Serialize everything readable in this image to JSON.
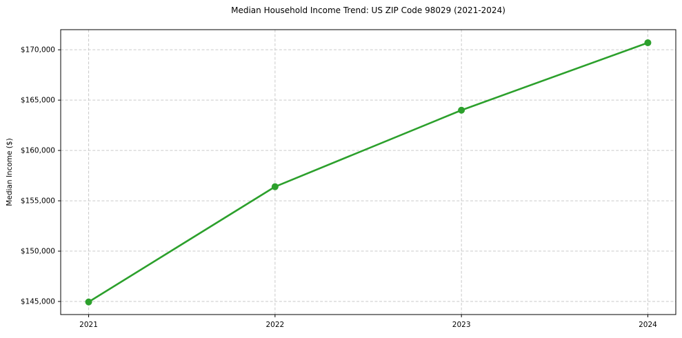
{
  "chart_data": {
    "type": "line",
    "title": "Median Household Income Trend: US ZIP Code 98029 (2021-2024)",
    "xlabel": "",
    "ylabel": "Median Income ($)",
    "x": [
      2021,
      2022,
      2023,
      2024
    ],
    "categories": [
      "2021",
      "2022",
      "2023",
      "2024"
    ],
    "series": [
      {
        "name": "Median Household Income",
        "values": [
          144950,
          156400,
          164000,
          170700
        ]
      }
    ],
    "xlim": [
      2020.85,
      2024.15
    ],
    "ylim": [
      143700,
      172000
    ],
    "yticks": [
      145000,
      150000,
      155000,
      160000,
      165000,
      170000
    ],
    "ytick_labels": [
      "$145,000",
      "$150,000",
      "$155,000",
      "$160,000",
      "$165,000",
      "$170,000"
    ],
    "grid": true,
    "grid_style": "dashed",
    "legend_position": "none",
    "colors": {
      "line": "#2ca02c",
      "marker": "#2ca02c",
      "grid": "#c9c9c9",
      "spine": "#000000",
      "text": "#000000",
      "background": "#ffffff"
    }
  }
}
